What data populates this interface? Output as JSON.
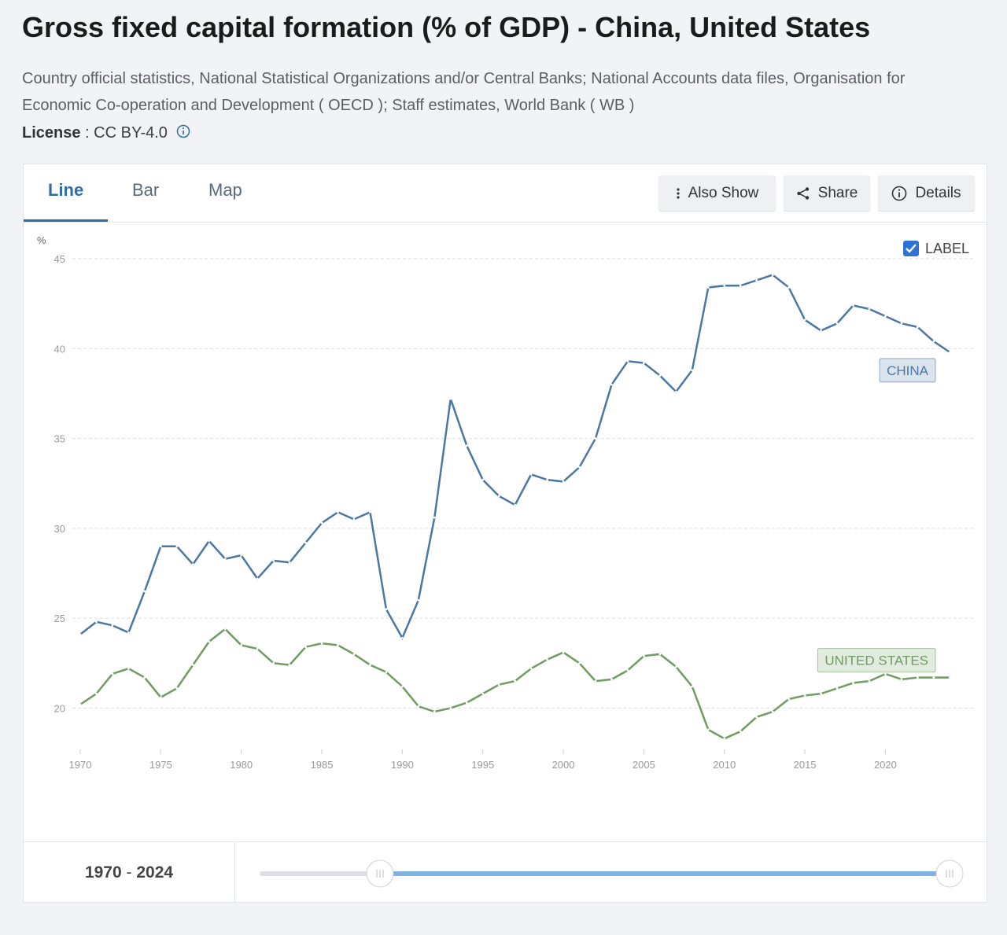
{
  "page": {
    "title": "Gross fixed capital formation (% of GDP) - China, United States",
    "subtitle": "Country official statistics, National Statistical Organizations and/or Central Banks; National Accounts data files, Organisation for Economic Co-operation and Development ( OECD ); Staff estimates, World Bank ( WB )",
    "license_label": "License",
    "license_text": ": CC BY-4.0",
    "tabs": [
      "Line",
      "Bar",
      "Map"
    ],
    "buttons": [
      "Also Show",
      "Share",
      "Details"
    ],
    "checkbox_label": "LABEL",
    "range": {
      "start": "1970",
      "separator": "-",
      "end": "2024"
    }
  },
  "chart_data": {
    "type": "line",
    "y_unit": "%",
    "x": [
      1970,
      1971,
      1972,
      1973,
      1974,
      1975,
      1976,
      1977,
      1978,
      1979,
      1980,
      1981,
      1982,
      1983,
      1984,
      1985,
      1986,
      1987,
      1988,
      1989,
      1990,
      1991,
      1992,
      1993,
      1994,
      1995,
      1996,
      1997,
      1998,
      1999,
      2000,
      2001,
      2002,
      2003,
      2004,
      2005,
      2006,
      2007,
      2008,
      2009,
      2010,
      2011,
      2012,
      2013,
      2014,
      2015,
      2016,
      2017,
      2018,
      2019,
      2020,
      2021,
      2022,
      2023,
      2024
    ],
    "series": [
      {
        "name": "CHINA",
        "color": "#4a78a3",
        "values": [
          24.1,
          24.8,
          24.6,
          24.2,
          26.5,
          29.0,
          29.0,
          28.0,
          29.3,
          28.3,
          28.5,
          27.2,
          28.2,
          28.1,
          29.2,
          30.3,
          30.9,
          30.5,
          30.9,
          25.5,
          23.9,
          26.0,
          30.6,
          37.2,
          34.6,
          32.7,
          31.8,
          31.3,
          33.0,
          32.7,
          32.6,
          33.4,
          35.0,
          38.0,
          39.3,
          39.2,
          38.5,
          37.6,
          38.8,
          43.4,
          43.5,
          43.5,
          43.8,
          44.1,
          43.4,
          41.6,
          41.0,
          41.4,
          42.4,
          42.2,
          41.8,
          41.4,
          41.2,
          40.4,
          39.8
        ]
      },
      {
        "name": "UNITED STATES",
        "color": "#6f9c5f",
        "values": [
          20.2,
          20.8,
          21.9,
          22.2,
          21.7,
          20.6,
          21.1,
          22.4,
          23.7,
          24.4,
          23.5,
          23.3,
          22.5,
          22.4,
          23.4,
          23.6,
          23.5,
          23.0,
          22.4,
          22.0,
          21.2,
          20.1,
          19.8,
          20.0,
          20.3,
          20.8,
          21.3,
          21.5,
          22.2,
          22.7,
          23.1,
          22.5,
          21.5,
          21.6,
          22.1,
          22.9,
          23.0,
          22.3,
          21.2,
          18.8,
          18.3,
          18.7,
          19.5,
          19.8,
          20.5,
          20.7,
          20.8,
          21.1,
          21.4,
          21.5,
          21.9,
          21.6,
          21.7,
          21.7,
          21.7
        ]
      }
    ],
    "xlim": [
      1970,
      2025.5
    ],
    "xticks": [
      1970,
      1975,
      1980,
      1985,
      1990,
      1995,
      2000,
      2005,
      2010,
      2015,
      2020
    ],
    "ylim": [
      17.7,
      45
    ],
    "yticks": [
      20,
      25,
      30,
      35,
      40,
      45
    ],
    "grid": true
  }
}
